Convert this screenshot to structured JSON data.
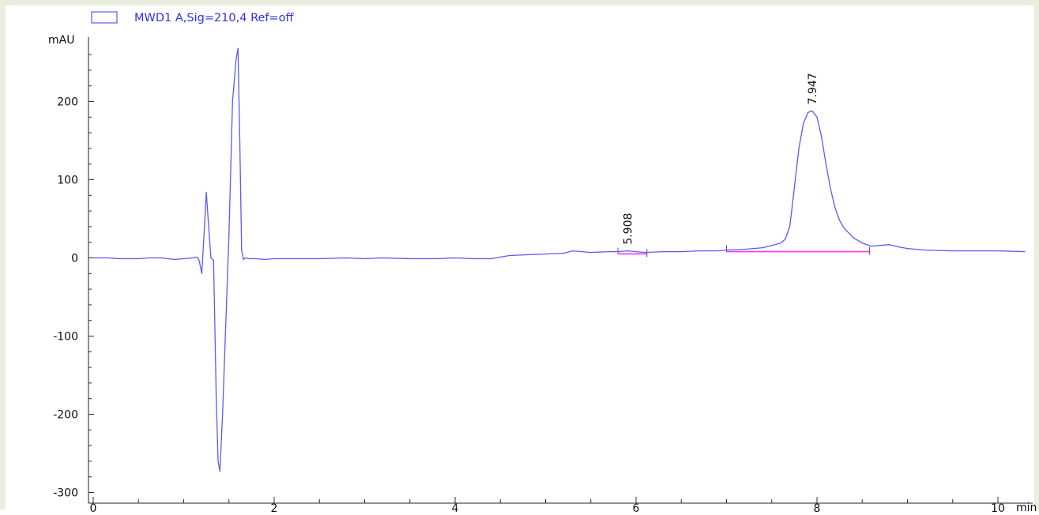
{
  "chart_data": {
    "type": "line",
    "title": "",
    "legend": {
      "label": "MWD1 A,Sig=210,4 Ref=off",
      "placement": "top-left"
    },
    "ylabel": "mAU",
    "xlabel": "min",
    "xlim": [
      0,
      10.3
    ],
    "ylim": [
      -300,
      275
    ],
    "x_ticks": [
      0,
      2,
      4,
      6,
      8,
      10
    ],
    "y_ticks": [
      -300,
      -200,
      -100,
      0,
      100,
      200
    ],
    "grid": false,
    "colors": {
      "trace": "#5b5bf0",
      "baseline": "#ff33ff",
      "marker": "#555555"
    },
    "series": [
      {
        "name": "MWD1 A,Sig=210,4 Ref=off",
        "x": [
          0,
          0.15,
          0.3,
          0.5,
          0.62,
          0.75,
          0.9,
          1.0,
          1.1,
          1.15,
          1.17,
          1.2,
          1.23,
          1.25,
          1.27,
          1.3,
          1.33,
          1.36,
          1.38,
          1.4,
          1.43,
          1.46,
          1.5,
          1.54,
          1.58,
          1.6,
          1.62,
          1.64,
          1.66,
          1.68,
          1.72,
          1.8,
          1.9,
          2.0,
          2.2,
          2.5,
          2.8,
          3.0,
          3.2,
          3.5,
          3.8,
          4.0,
          4.2,
          4.4,
          4.6,
          4.8,
          5.0,
          5.2,
          5.3,
          5.5,
          5.7,
          5.8,
          5.9,
          6.0,
          6.1,
          6.3,
          6.5,
          6.7,
          6.9,
          7.0,
          7.2,
          7.4,
          7.5,
          7.6,
          7.65,
          7.7,
          7.75,
          7.8,
          7.85,
          7.9,
          7.947,
          8.0,
          8.05,
          8.1,
          8.15,
          8.2,
          8.25,
          8.3,
          8.4,
          8.5,
          8.6,
          8.7,
          8.8,
          8.9,
          9.0,
          9.2,
          9.5,
          9.8,
          10.0,
          10.3
        ],
        "y": [
          0,
          0,
          -1,
          -1,
          0,
          0,
          -2,
          -1,
          0,
          1,
          -3,
          -20,
          40,
          84,
          50,
          0,
          -3,
          -180,
          -260,
          -273,
          -200,
          -100,
          30,
          200,
          255,
          268,
          150,
          10,
          -2,
          0,
          -1,
          -1,
          -2,
          -1,
          -1,
          -1,
          0,
          -1,
          0,
          -1,
          -1,
          0,
          -1,
          -1,
          3,
          4,
          5,
          6,
          9,
          7,
          8,
          8,
          9,
          8,
          7,
          8,
          8,
          9,
          9,
          10,
          11,
          13,
          16,
          19,
          24,
          40,
          90,
          140,
          172,
          186,
          188,
          180,
          155,
          120,
          88,
          64,
          48,
          38,
          26,
          19,
          15,
          16,
          17,
          14,
          12,
          10,
          9,
          9,
          9,
          8
        ]
      }
    ],
    "peaks": [
      {
        "rt_label": "5.908",
        "rt": 5.908,
        "start": 5.8,
        "end": 6.12
      },
      {
        "rt_label": "7.947",
        "rt": 7.947,
        "start": 7.0,
        "end": 8.58
      }
    ]
  }
}
